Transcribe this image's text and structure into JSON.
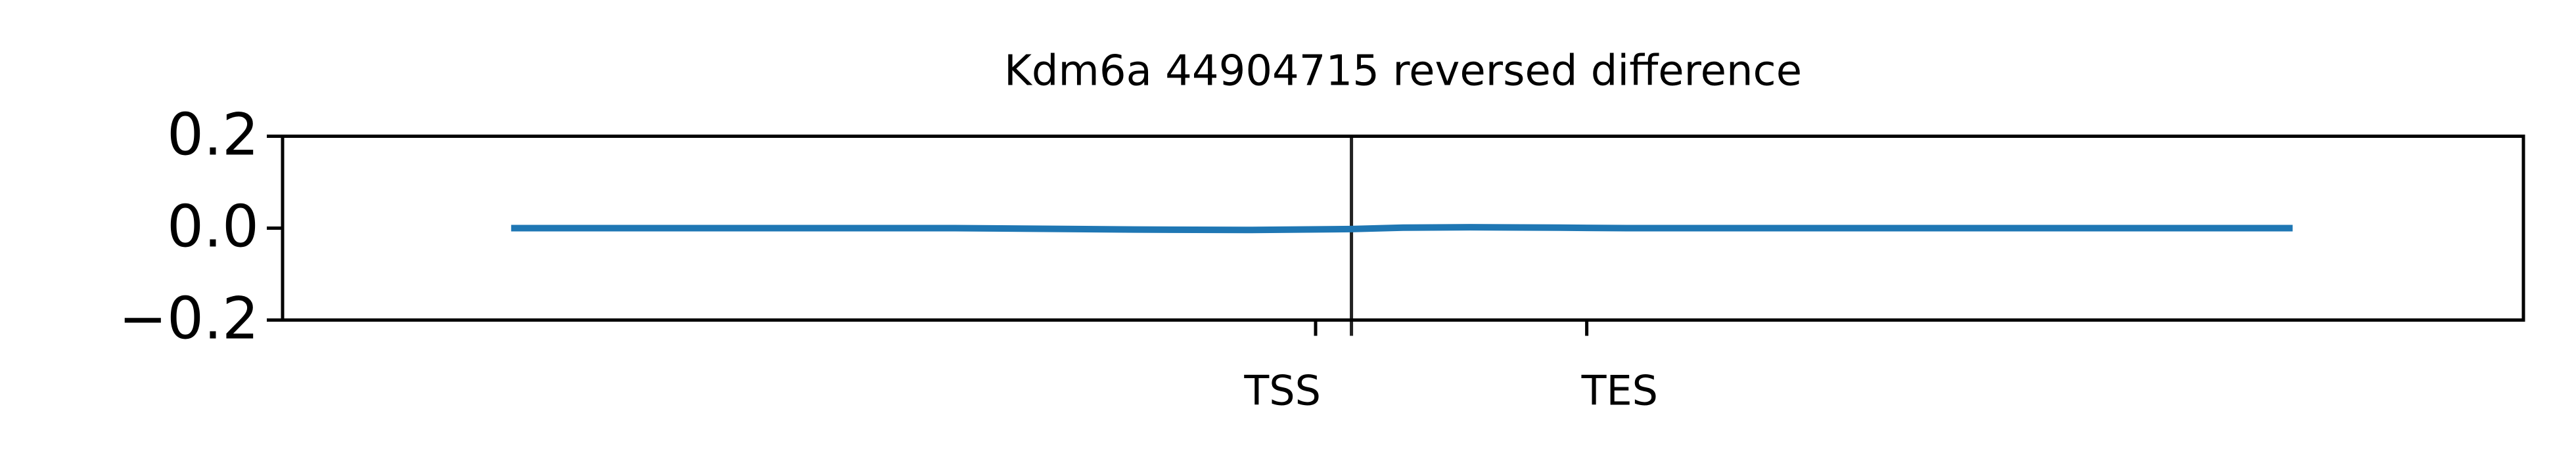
{
  "chart_data": {
    "type": "line",
    "title": "Kdm6a 44904715 reversed difference",
    "x": [
      10.2,
      20,
      30,
      33,
      38,
      43,
      47.7,
      50,
      53,
      57,
      60,
      70,
      80,
      89.7
    ],
    "series": [
      {
        "color": "#1f77b4",
        "values": [
          0,
          0,
          0,
          -0.001,
          -0.003,
          -0.004,
          -0.002,
          0.001,
          0.002,
          0.001,
          0,
          0,
          0,
          0
        ]
      }
    ],
    "xlim": [
      0,
      100
    ],
    "xticks": [
      {
        "value": 46.1,
        "label": "TSS"
      },
      {
        "value": 58.2,
        "label": "TES"
      }
    ],
    "vline": 47.7,
    "ylim": [
      -0.2,
      0.2
    ],
    "yticks": [
      {
        "value": -0.2,
        "label": "−0.2"
      },
      {
        "value": 0,
        "label": "0.0"
      },
      0.2
    ],
    "grid": false
  }
}
